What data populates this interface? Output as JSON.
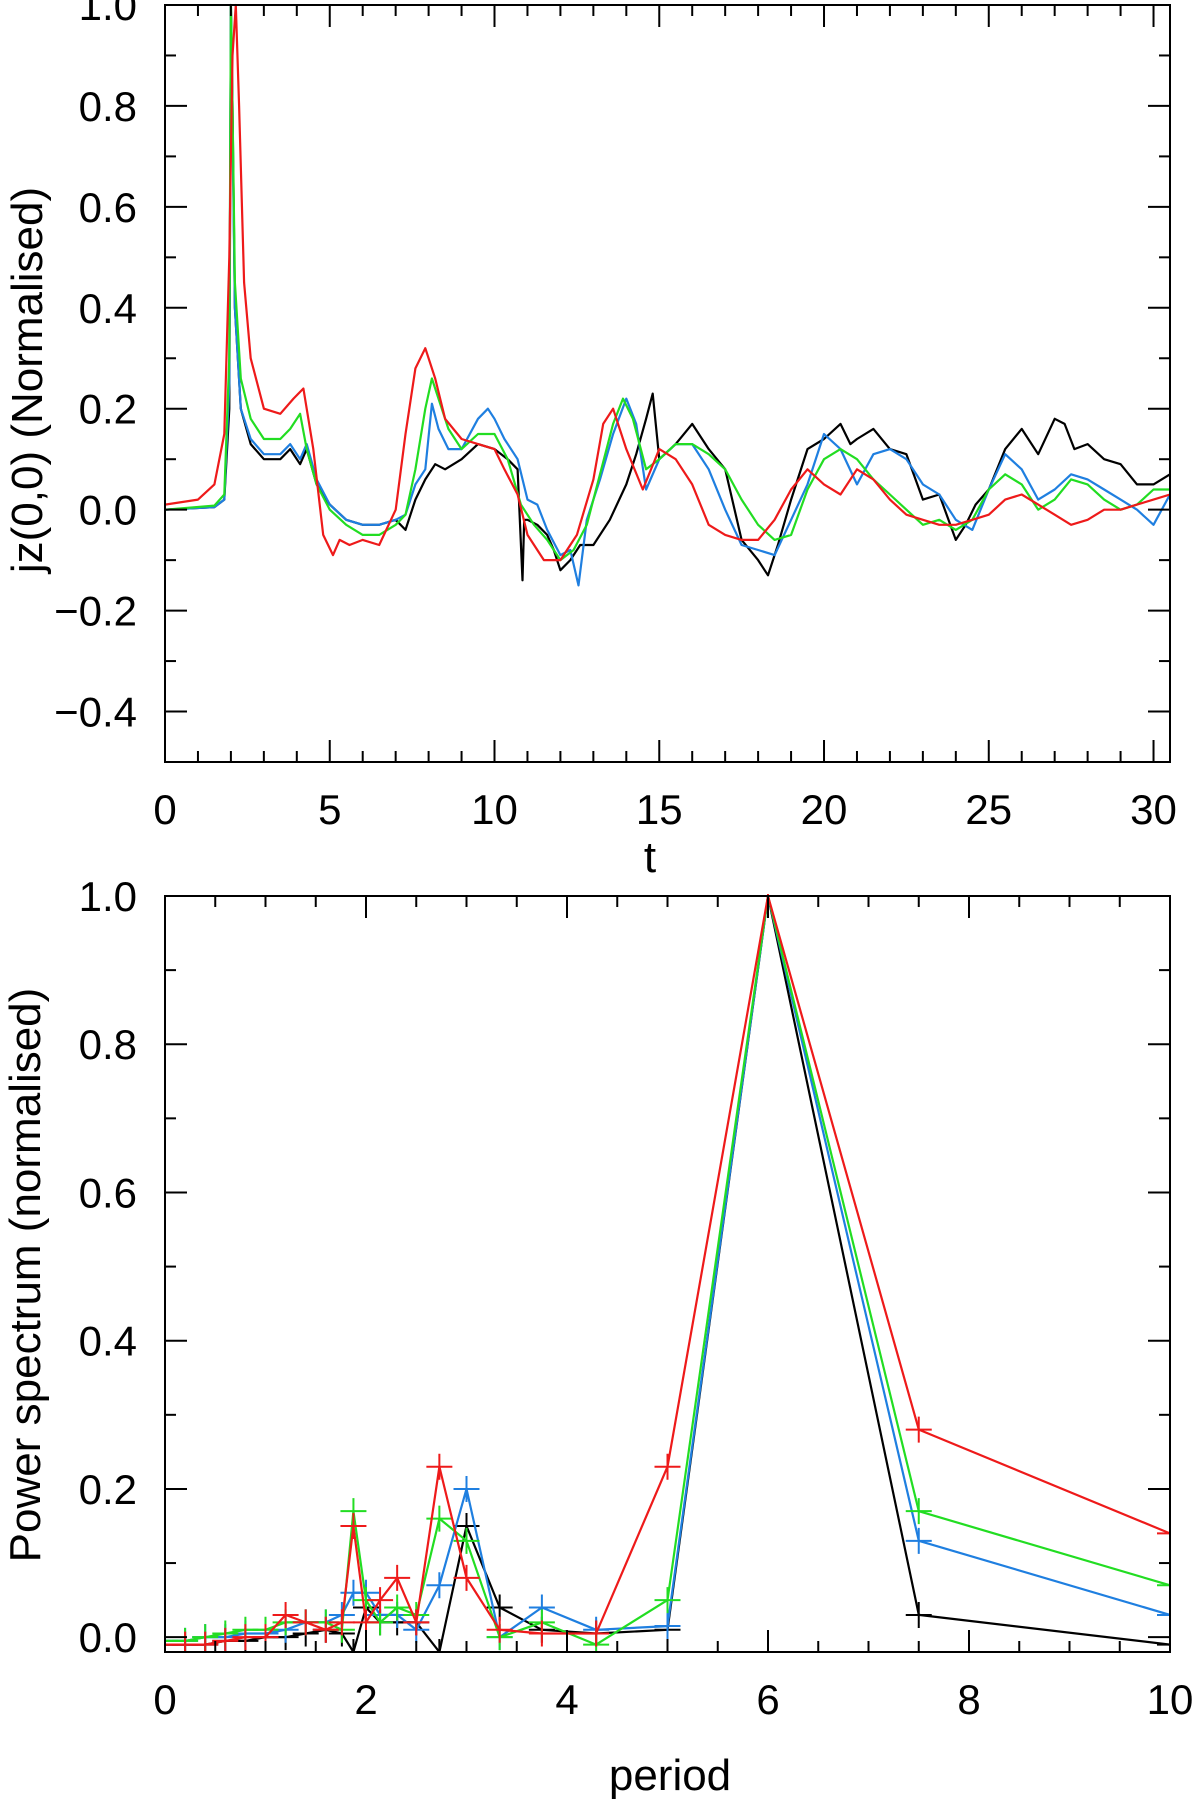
{
  "chart_data": [
    {
      "type": "line",
      "title": "",
      "xlabel": "t",
      "ylabel": "jz(0,0) (Normalised)",
      "xlim": [
        0,
        30.5
      ],
      "ylim": [
        -0.5,
        1.0
      ],
      "xticks": [
        0,
        5,
        10,
        15,
        20,
        25,
        30
      ],
      "yticks": [
        -0.4,
        -0.2,
        0.0,
        0.2,
        0.4,
        0.6,
        0.8,
        1.0
      ],
      "xtick_labels": [
        "0",
        "5",
        "10",
        "15",
        "20",
        "25",
        "30"
      ],
      "ytick_labels": [
        "−0.4",
        "−0.2",
        "0.0",
        "0.2",
        "0.4",
        "0.6",
        "0.8",
        "1.0"
      ],
      "grid": false,
      "legend": "none",
      "series": [
        {
          "color": "#000000",
          "x": [
            0,
            1.5,
            1.8,
            1.95,
            2.0,
            2.05,
            2.12,
            2.3,
            2.6,
            3.0,
            3.5,
            3.8,
            4.1,
            4.3,
            4.6,
            5.0,
            5.5,
            6.0,
            6.5,
            7.0,
            7.3,
            7.6,
            7.9,
            8.2,
            8.5,
            9.0,
            9.5,
            10.0,
            10.4,
            10.7,
            10.85,
            10.9,
            11.0,
            11.3,
            11.6,
            11.8,
            12.0,
            12.3,
            12.6,
            13.0,
            13.5,
            14.0,
            14.3,
            14.6,
            14.8,
            15.0,
            15.5,
            16.0,
            16.5,
            17.0,
            17.5,
            18.0,
            18.3,
            18.6,
            19.0,
            19.5,
            20.0,
            20.5,
            20.8,
            21.0,
            21.5,
            22.0,
            22.5,
            23.0,
            23.5,
            24.0,
            24.3,
            24.6,
            25.0,
            25.5,
            26.0,
            26.5,
            27.0,
            27.3,
            27.6,
            28.0,
            28.5,
            29.0,
            29.5,
            30.0,
            30.5
          ],
          "y": [
            0.0,
            0.005,
            0.02,
            0.2,
            1.0,
            0.8,
            0.4,
            0.2,
            0.13,
            0.1,
            0.1,
            0.12,
            0.09,
            0.12,
            0.05,
            0.01,
            -0.02,
            -0.03,
            -0.03,
            -0.02,
            -0.04,
            0.02,
            0.06,
            0.09,
            0.08,
            0.1,
            0.13,
            0.12,
            0.1,
            0.08,
            -0.14,
            -0.02,
            -0.02,
            -0.03,
            -0.05,
            -0.08,
            -0.12,
            -0.1,
            -0.07,
            -0.07,
            -0.02,
            0.05,
            0.11,
            0.18,
            0.23,
            0.1,
            0.13,
            0.17,
            0.12,
            0.08,
            -0.06,
            -0.1,
            -0.13,
            -0.07,
            0.02,
            0.12,
            0.14,
            0.17,
            0.13,
            0.14,
            0.16,
            0.12,
            0.11,
            0.02,
            0.03,
            -0.06,
            -0.03,
            0.01,
            0.04,
            0.12,
            0.16,
            0.11,
            0.18,
            0.17,
            0.12,
            0.13,
            0.1,
            0.09,
            0.05,
            0.05,
            0.07
          ]
        },
        {
          "color": "#1f7fe0",
          "x": [
            0,
            1.5,
            1.8,
            1.95,
            2.0,
            2.05,
            2.12,
            2.3,
            2.6,
            3.0,
            3.5,
            3.8,
            4.1,
            4.3,
            4.6,
            5.0,
            5.5,
            6.0,
            6.5,
            7.0,
            7.3,
            7.6,
            7.9,
            8.1,
            8.3,
            8.6,
            9.0,
            9.5,
            9.8,
            10.0,
            10.3,
            10.7,
            11.0,
            11.3,
            11.6,
            12.0,
            12.3,
            12.55,
            12.8,
            13.2,
            13.6,
            14.0,
            14.3,
            14.6,
            15.0,
            15.5,
            16.0,
            16.5,
            17.0,
            17.5,
            18.0,
            18.5,
            19.0,
            19.5,
            20.0,
            20.5,
            21.0,
            21.5,
            22.0,
            22.5,
            23.0,
            23.5,
            24.0,
            24.5,
            25.0,
            25.5,
            26.0,
            26.5,
            27.0,
            27.5,
            28.0,
            28.5,
            29.0,
            29.5,
            30.0,
            30.5
          ],
          "y": [
            0.0,
            0.005,
            0.02,
            0.25,
            1.0,
            0.75,
            0.4,
            0.2,
            0.14,
            0.11,
            0.11,
            0.13,
            0.1,
            0.13,
            0.06,
            0.01,
            -0.02,
            -0.03,
            -0.03,
            -0.02,
            -0.01,
            0.05,
            0.08,
            0.21,
            0.16,
            0.12,
            0.12,
            0.18,
            0.2,
            0.18,
            0.14,
            0.1,
            0.02,
            0.01,
            -0.04,
            -0.09,
            -0.08,
            -0.15,
            -0.02,
            0.06,
            0.15,
            0.22,
            0.17,
            0.04,
            0.1,
            0.13,
            0.13,
            0.08,
            0.0,
            -0.07,
            -0.08,
            -0.09,
            -0.02,
            0.05,
            0.15,
            0.12,
            0.05,
            0.11,
            0.12,
            0.1,
            0.05,
            0.03,
            -0.02,
            -0.04,
            0.04,
            0.11,
            0.08,
            0.02,
            0.04,
            0.07,
            0.06,
            0.04,
            0.02,
            0.0,
            -0.03,
            0.03
          ]
        },
        {
          "color": "#22dd22",
          "x": [
            0,
            1.5,
            1.8,
            1.95,
            2.0,
            2.05,
            2.12,
            2.3,
            2.6,
            3.0,
            3.5,
            3.8,
            4.1,
            4.3,
            4.6,
            5.0,
            5.5,
            6.0,
            6.5,
            7.0,
            7.3,
            7.6,
            7.9,
            8.1,
            8.3,
            8.6,
            9.0,
            9.5,
            10.0,
            10.4,
            10.8,
            11.2,
            11.6,
            12.0,
            12.4,
            12.8,
            13.2,
            13.6,
            13.9,
            14.2,
            14.6,
            15.0,
            15.5,
            16.0,
            16.5,
            17.0,
            17.5,
            18.0,
            18.5,
            19.0,
            19.5,
            20.0,
            20.5,
            21.0,
            21.5,
            22.0,
            22.5,
            23.0,
            23.5,
            24.0,
            24.5,
            25.0,
            25.5,
            26.0,
            26.5,
            27.0,
            27.5,
            28.0,
            28.5,
            29.0,
            29.5,
            30.0,
            30.5
          ],
          "y": [
            0.0,
            0.008,
            0.03,
            0.3,
            1.0,
            0.8,
            0.45,
            0.26,
            0.18,
            0.14,
            0.14,
            0.16,
            0.19,
            0.12,
            0.05,
            0.0,
            -0.03,
            -0.05,
            -0.05,
            -0.03,
            -0.01,
            0.08,
            0.2,
            0.26,
            0.22,
            0.16,
            0.12,
            0.15,
            0.15,
            0.1,
            0.01,
            -0.03,
            -0.06,
            -0.1,
            -0.08,
            -0.03,
            0.07,
            0.17,
            0.22,
            0.18,
            0.08,
            0.1,
            0.13,
            0.13,
            0.11,
            0.08,
            0.02,
            -0.03,
            -0.06,
            -0.05,
            0.04,
            0.1,
            0.12,
            0.1,
            0.06,
            0.03,
            0.0,
            -0.03,
            -0.02,
            -0.04,
            -0.02,
            0.04,
            0.07,
            0.05,
            0.0,
            0.02,
            0.06,
            0.05,
            0.02,
            0.0,
            0.01,
            0.04,
            0.04
          ]
        },
        {
          "color": "#ee1a1a",
          "x": [
            0,
            1.0,
            1.5,
            1.8,
            1.95,
            2.05,
            2.15,
            2.25,
            2.4,
            2.6,
            3.0,
            3.5,
            3.9,
            4.2,
            4.5,
            4.8,
            5.1,
            5.3,
            5.6,
            6.0,
            6.5,
            7.0,
            7.3,
            7.6,
            7.9,
            8.2,
            8.5,
            9.0,
            9.5,
            10.0,
            10.3,
            10.7,
            11.0,
            11.5,
            12.0,
            12.5,
            13.0,
            13.3,
            13.6,
            14.0,
            14.5,
            15.0,
            15.5,
            16.0,
            16.5,
            17.0,
            17.5,
            18.0,
            18.5,
            19.0,
            19.5,
            20.0,
            20.5,
            21.0,
            21.5,
            22.0,
            22.5,
            23.0,
            23.5,
            24.0,
            24.5,
            25.0,
            25.5,
            26.0,
            26.5,
            27.0,
            27.5,
            28.0,
            28.5,
            29.0,
            29.5,
            30.0,
            30.5
          ],
          "y": [
            0.01,
            0.02,
            0.05,
            0.15,
            0.5,
            0.9,
            1.0,
            0.8,
            0.45,
            0.3,
            0.2,
            0.19,
            0.22,
            0.24,
            0.12,
            -0.05,
            -0.09,
            -0.06,
            -0.07,
            -0.06,
            -0.07,
            0.0,
            0.15,
            0.28,
            0.32,
            0.26,
            0.18,
            0.14,
            0.13,
            0.12,
            0.08,
            0.03,
            -0.05,
            -0.1,
            -0.1,
            -0.05,
            0.06,
            0.17,
            0.2,
            0.12,
            0.04,
            0.12,
            0.1,
            0.05,
            -0.03,
            -0.05,
            -0.06,
            -0.06,
            -0.02,
            0.04,
            0.08,
            0.05,
            0.03,
            0.08,
            0.06,
            0.02,
            -0.01,
            -0.02,
            -0.03,
            -0.03,
            -0.02,
            -0.01,
            0.02,
            0.03,
            0.01,
            -0.01,
            -0.03,
            -0.02,
            0.0,
            0.0,
            0.01,
            0.02,
            0.03
          ]
        }
      ]
    },
    {
      "type": "line",
      "title": "",
      "xlabel": "period",
      "ylabel": "Power spectrum (normalised)",
      "xlim": [
        0,
        10
      ],
      "ylim": [
        -0.02,
        1.0
      ],
      "xticks": [
        0,
        2,
        4,
        6,
        8,
        10
      ],
      "yticks": [
        0.0,
        0.2,
        0.4,
        0.6,
        0.8,
        1.0
      ],
      "xtick_labels": [
        "0",
        "2",
        "4",
        "6",
        "8",
        "10"
      ],
      "ytick_labels": [
        "0.0",
        "0.2",
        "0.4",
        "0.6",
        "0.8",
        "1.0"
      ],
      "markers": "plus",
      "grid": false,
      "legend": "none",
      "series": [
        {
          "color": "#000000",
          "x": [
            0.0,
            0.2,
            0.4,
            0.6,
            0.8,
            1.0,
            1.2,
            1.4,
            1.6,
            1.76,
            1.875,
            2.0,
            2.14,
            2.31,
            2.5,
            2.73,
            3.0,
            3.33,
            3.75,
            4.29,
            5.0,
            6.0,
            7.5,
            10.0
          ],
          "x_note": "",
          "y": [
            -0.01,
            -0.01,
            -0.01,
            -0.005,
            -0.005,
            0.0,
            0.0,
            0.005,
            0.01,
            0.005,
            -0.02,
            0.04,
            0.02,
            0.02,
            0.02,
            -0.02,
            0.15,
            0.04,
            0.01,
            0.005,
            0.01,
            1.0,
            0.03,
            -0.01
          ]
        },
        {
          "color": "#1f7fe0",
          "x": [
            0.0,
            0.2,
            0.4,
            0.6,
            0.8,
            1.0,
            1.2,
            1.4,
            1.6,
            1.76,
            1.875,
            2.0,
            2.14,
            2.31,
            2.5,
            2.73,
            3.0,
            3.33,
            3.75,
            4.29,
            5.0,
            6.0,
            7.5,
            10.0
          ],
          "y": [
            -0.005,
            -0.005,
            0.0,
            0.0,
            0.005,
            0.005,
            0.01,
            0.02,
            0.02,
            0.03,
            0.06,
            0.06,
            0.03,
            0.03,
            0.01,
            0.07,
            0.2,
            0.0,
            0.04,
            0.01,
            0.015,
            1.0,
            0.13,
            0.03
          ]
        },
        {
          "color": "#22dd22",
          "x": [
            0.0,
            0.2,
            0.4,
            0.6,
            0.8,
            1.0,
            1.2,
            1.4,
            1.6,
            1.76,
            1.875,
            2.0,
            2.14,
            2.31,
            2.5,
            2.73,
            3.0,
            3.33,
            3.75,
            4.29,
            5.0,
            6.0,
            7.5,
            10.0
          ],
          "y": [
            -0.005,
            -0.005,
            0.0,
            0.005,
            0.01,
            0.01,
            0.02,
            0.02,
            0.02,
            0.01,
            0.17,
            0.05,
            0.02,
            0.04,
            0.03,
            0.16,
            0.13,
            0.0,
            0.02,
            -0.01,
            0.05,
            1.0,
            0.17,
            0.07
          ]
        },
        {
          "color": "#ee1a1a",
          "x": [
            0.0,
            0.2,
            0.4,
            0.6,
            0.8,
            1.0,
            1.2,
            1.4,
            1.6,
            1.76,
            1.875,
            2.0,
            2.14,
            2.31,
            2.5,
            2.73,
            3.0,
            3.33,
            3.75,
            4.29,
            5.0,
            6.0,
            7.5,
            10.0
          ],
          "y": [
            -0.01,
            -0.01,
            -0.01,
            -0.005,
            0.0,
            0.0,
            0.03,
            0.02,
            0.01,
            0.02,
            0.15,
            0.02,
            0.05,
            0.08,
            0.02,
            0.23,
            0.08,
            0.01,
            0.005,
            0.005,
            0.23,
            1.0,
            0.28,
            0.14
          ]
        }
      ]
    }
  ]
}
